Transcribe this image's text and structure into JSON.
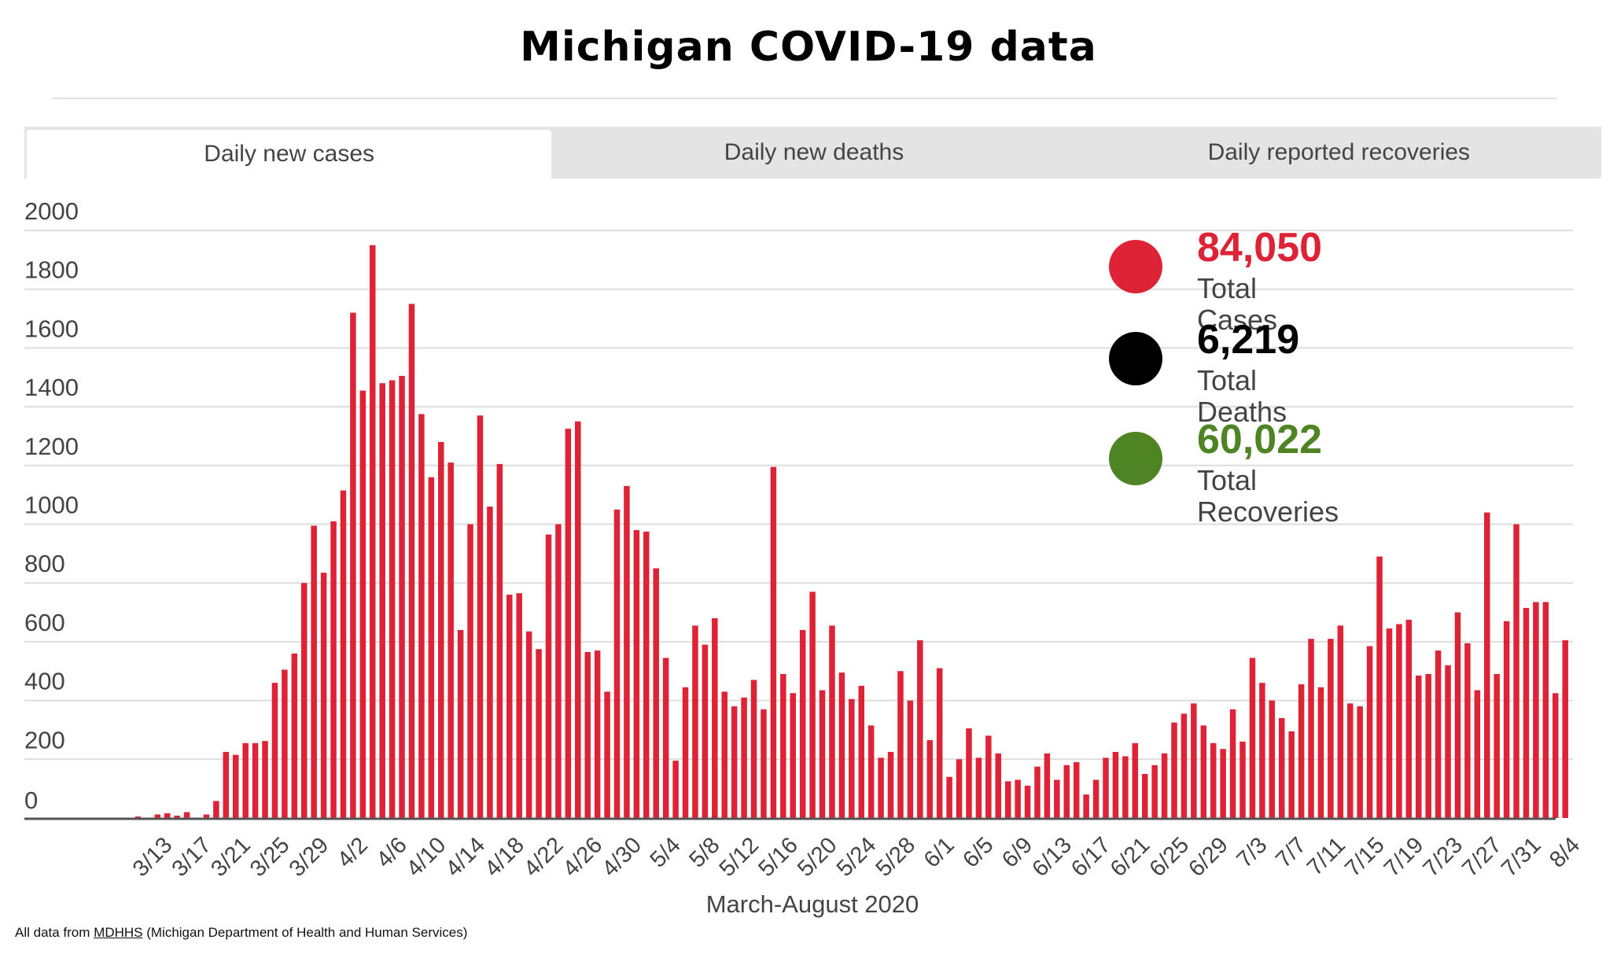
{
  "title": "Michigan COVID-19 data",
  "tabs": [
    {
      "label": "Daily new cases",
      "active": true
    },
    {
      "label": "Daily new deaths",
      "active": false
    },
    {
      "label": "Daily reported recoveries",
      "active": false
    }
  ],
  "legend": [
    {
      "value": "84,050",
      "label": "Total Cases",
      "color": "#de2337"
    },
    {
      "value": "6,219",
      "label": "Total Deaths",
      "color": "#000000"
    },
    {
      "value": "60,022",
      "label": "Total Recoveries",
      "color": "#4e8423"
    }
  ],
  "footer": {
    "prefix": "All data from ",
    "link": "MDHHS",
    "suffix": " (Michigan Department of Health and Human Services)"
  },
  "chart_data": {
    "type": "bar",
    "title": "Daily new cases",
    "xlabel": "March-August 2020",
    "ylabel": "",
    "ylim": [
      0,
      2000
    ],
    "yticks": [
      0,
      200,
      400,
      600,
      800,
      1000,
      1200,
      1400,
      1600,
      1800,
      2000
    ],
    "grid": true,
    "bar_color": "#de2337",
    "start_date": "3/10",
    "xtick_labels": [
      "3/13",
      "3/17",
      "3/21",
      "3/25",
      "3/29",
      "4/2",
      "4/6",
      "4/10",
      "4/14",
      "4/18",
      "4/22",
      "4/26",
      "4/30",
      "5/4",
      "5/8",
      "5/12",
      "5/16",
      "5/20",
      "5/24",
      "5/28",
      "6/1",
      "6/5",
      "6/9",
      "6/13",
      "6/17",
      "6/21",
      "6/25",
      "6/29",
      "7/3",
      "7/7",
      "7/11",
      "7/15",
      "7/19",
      "7/23",
      "7/27",
      "7/31",
      "8/4"
    ],
    "values": [
      0,
      5,
      0,
      12,
      16,
      8,
      20,
      0,
      12,
      58,
      225,
      215,
      255,
      255,
      262,
      460,
      505,
      560,
      800,
      995,
      835,
      1010,
      1115,
      1720,
      1455,
      1950,
      1480,
      1490,
      1505,
      1750,
      1375,
      1160,
      1280,
      1210,
      640,
      1000,
      1370,
      1060,
      1205,
      760,
      765,
      635,
      575,
      965,
      1000,
      1325,
      1350,
      565,
      570,
      430,
      1050,
      1130,
      980,
      975,
      850,
      545,
      195,
      445,
      655,
      590,
      680,
      430,
      380,
      410,
      470,
      370,
      1195,
      490,
      425,
      640,
      770,
      435,
      655,
      495,
      405,
      450,
      315,
      205,
      225,
      500,
      400,
      605,
      265,
      510,
      140,
      200,
      305,
      205,
      280,
      220,
      125,
      130,
      110,
      175,
      220,
      130,
      180,
      190,
      80,
      130,
      205,
      225,
      210,
      255,
      150,
      180,
      220,
      325,
      355,
      390,
      315,
      255,
      235,
      370,
      260,
      545,
      460,
      400,
      340,
      295,
      455,
      610,
      445,
      610,
      655,
      390,
      380,
      585,
      890,
      645,
      660,
      675,
      485,
      490,
      570,
      520,
      700,
      595,
      435,
      1040,
      490,
      670,
      1000,
      715,
      735,
      735,
      425,
      605
    ]
  }
}
